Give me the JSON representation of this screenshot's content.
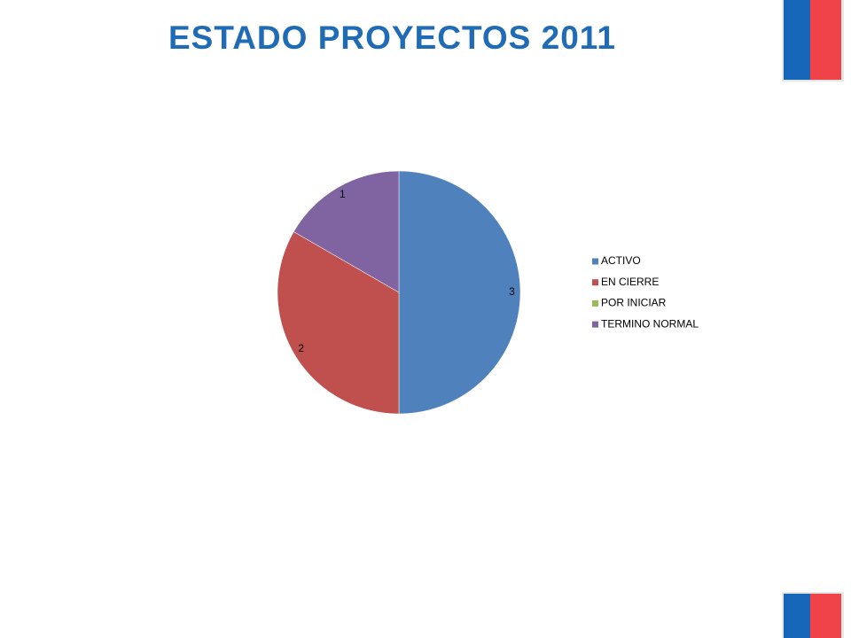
{
  "chart_data": {
    "type": "pie",
    "title": "ESTADO PROYECTOS 2011",
    "categories": [
      "ACTIVO",
      "EN CIERRE",
      "POR INICIAR",
      "TERMINO NORMAL"
    ],
    "values": [
      3,
      2,
      0,
      1
    ],
    "colors": [
      "#4f81bd",
      "#c0504d",
      "#9bbb59",
      "#8064a2"
    ],
    "legend": "right"
  }
}
